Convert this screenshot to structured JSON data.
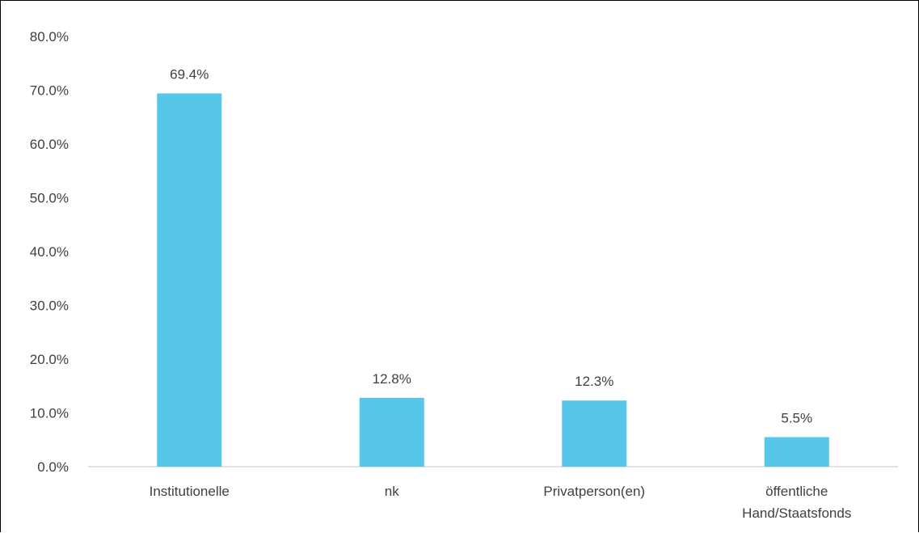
{
  "colors": {
    "bar": "#56c7e8",
    "axis": "#d9d9d9",
    "text": "#404040"
  },
  "chart_data": {
    "type": "bar",
    "categories": [
      [
        "Institutionelle"
      ],
      [
        "nk"
      ],
      [
        "Privatperson(en)"
      ],
      [
        "öffentliche",
        "Hand/Staatsfonds"
      ]
    ],
    "values": [
      69.4,
      12.8,
      12.3,
      5.5
    ],
    "value_labels": [
      "69.4%",
      "12.8%",
      "12.3%",
      "5.5%"
    ],
    "title": "",
    "xlabel": "",
    "ylabel": "",
    "ylim": [
      0,
      80
    ],
    "yticks": [
      0,
      10,
      20,
      30,
      40,
      50,
      60,
      70,
      80
    ],
    "ytick_labels": [
      "0.0%",
      "10.0%",
      "20.0%",
      "30.0%",
      "40.0%",
      "50.0%",
      "60.0%",
      "70.0%",
      "80.0%"
    ],
    "grid": false,
    "legend": "none"
  }
}
